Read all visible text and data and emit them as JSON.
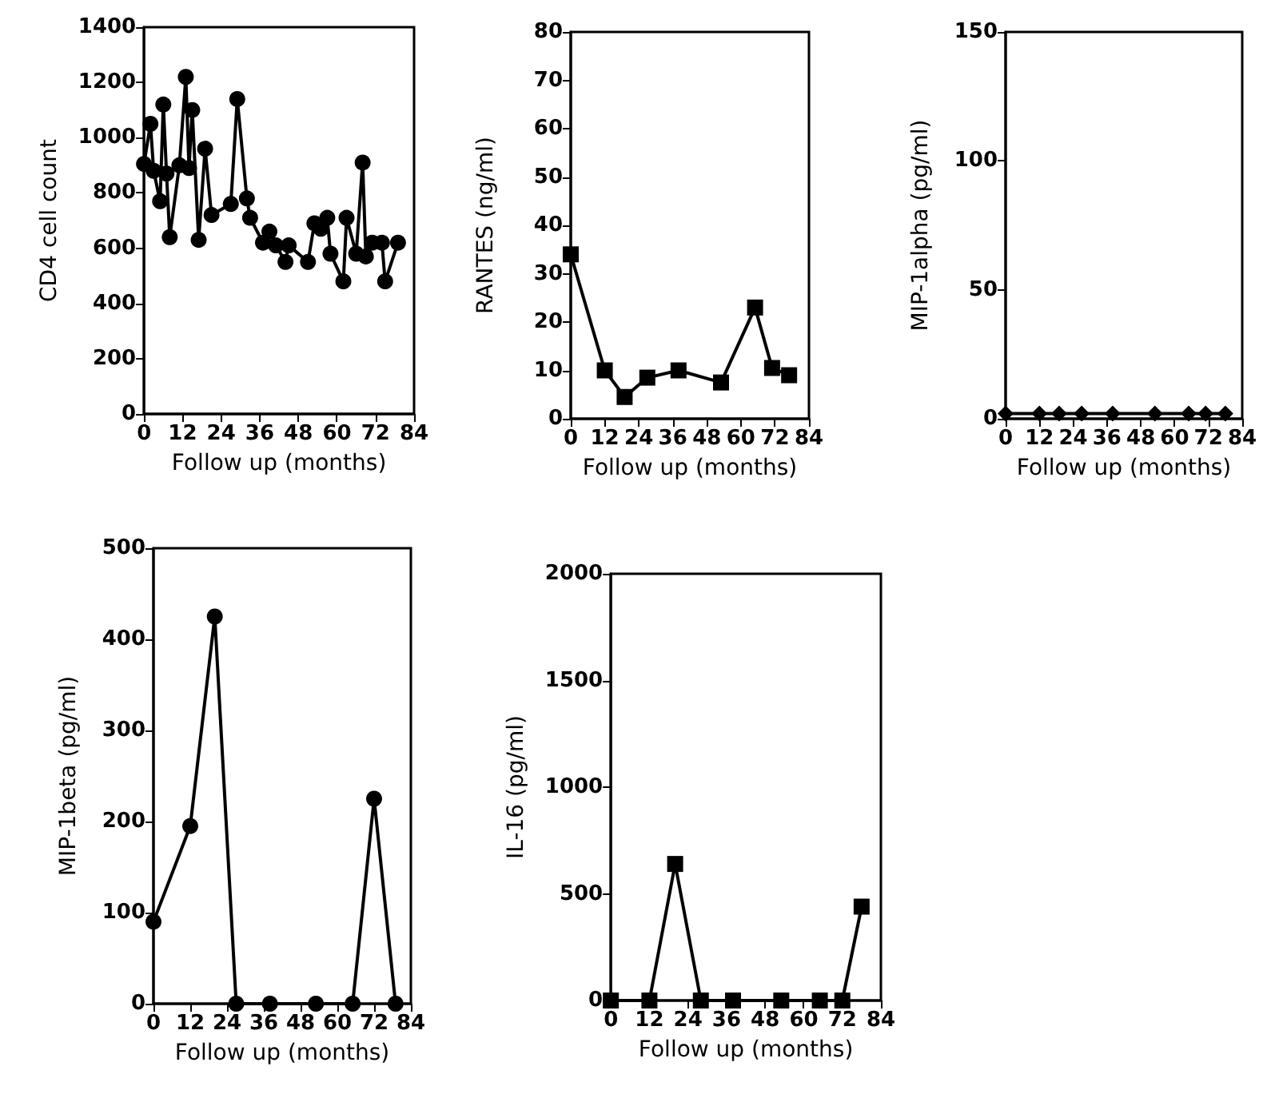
{
  "chart_data": [
    {
      "type": "line",
      "xlabel": "Follow up (months)",
      "ylabel": "CD4 cell count",
      "xlim": [
        0,
        84
      ],
      "xticks": [
        0,
        12,
        24,
        36,
        48,
        60,
        72,
        84
      ],
      "ylim": [
        0,
        1400
      ],
      "yticks": [
        0,
        200,
        400,
        600,
        800,
        1000,
        1200,
        1400
      ],
      "marker": "circle",
      "grid": false,
      "series": [
        {
          "color": "#000000",
          "x": [
            0,
            2,
            3,
            5,
            6,
            7,
            8,
            11,
            13,
            14,
            15,
            17,
            19,
            21,
            27,
            29,
            32,
            33,
            37,
            39,
            41,
            44,
            45,
            51,
            53,
            55,
            57,
            58,
            62,
            63,
            66,
            68,
            69,
            71,
            74,
            75,
            79
          ],
          "values": [
            905,
            1050,
            880,
            770,
            1120,
            870,
            640,
            900,
            1220,
            890,
            1100,
            630,
            960,
            720,
            760,
            1140,
            780,
            710,
            620,
            660,
            610,
            550,
            610,
            550,
            690,
            670,
            710,
            580,
            480,
            710,
            580,
            910,
            570,
            620,
            620,
            480,
            620
          ]
        }
      ]
    },
    {
      "type": "line",
      "xlabel": "Follow up (months)",
      "ylabel": "RANTES (ng/ml)",
      "xlim": [
        0,
        84
      ],
      "xticks": [
        0,
        12,
        24,
        36,
        48,
        60,
        72,
        84
      ],
      "ylim": [
        0,
        80
      ],
      "yticks": [
        0,
        10,
        20,
        30,
        40,
        50,
        60,
        70,
        80
      ],
      "marker": "square",
      "grid": false,
      "series": [
        {
          "color": "#000000",
          "x": [
            0,
            12,
            19,
            27,
            38,
            53,
            65,
            71,
            77
          ],
          "values": [
            34,
            10,
            4.5,
            8.5,
            10,
            7.5,
            23,
            10.5,
            9
          ]
        }
      ]
    },
    {
      "type": "line",
      "xlabel": "Follow up (months)",
      "ylabel": "MIP-1alpha (pg/ml)",
      "xlim": [
        0,
        84
      ],
      "xticks": [
        0,
        12,
        24,
        36,
        48,
        60,
        72,
        84
      ],
      "ylim": [
        0,
        150
      ],
      "yticks": [
        0,
        50,
        100,
        150
      ],
      "marker": "diamond",
      "grid": false,
      "series": [
        {
          "color": "#000000",
          "x": [
            0,
            12,
            19,
            27,
            38,
            53,
            65,
            71,
            78
          ],
          "values": [
            2,
            2,
            2,
            2,
            2,
            2,
            2,
            2,
            2
          ]
        }
      ]
    },
    {
      "type": "line",
      "xlabel": "Follow up (months)",
      "ylabel": "MIP-1beta (pg/ml)",
      "xlim": [
        0,
        84
      ],
      "xticks": [
        0,
        12,
        24,
        36,
        48,
        60,
        72,
        84
      ],
      "ylim": [
        0,
        500
      ],
      "yticks": [
        0,
        100,
        200,
        300,
        400,
        500
      ],
      "marker": "circle",
      "grid": false,
      "series": [
        {
          "color": "#000000",
          "x": [
            0,
            12,
            20,
            27,
            38,
            53,
            65,
            72,
            79
          ],
          "values": [
            90,
            195,
            425,
            0,
            0,
            0,
            0,
            225,
            0
          ]
        }
      ]
    },
    {
      "type": "line",
      "xlabel": "Follow up (months)",
      "ylabel": "IL-16 (pg/ml)",
      "xlim": [
        0,
        84
      ],
      "xticks": [
        0,
        12,
        24,
        36,
        48,
        60,
        72,
        84
      ],
      "ylim": [
        0,
        2000
      ],
      "yticks": [
        0,
        500,
        1000,
        1500,
        2000
      ],
      "marker": "square",
      "grid": false,
      "series": [
        {
          "color": "#000000",
          "x": [
            0,
            12,
            20,
            28,
            38,
            53,
            65,
            72,
            78
          ],
          "values": [
            0,
            0,
            640,
            0,
            0,
            0,
            0,
            0,
            440
          ]
        }
      ]
    }
  ]
}
